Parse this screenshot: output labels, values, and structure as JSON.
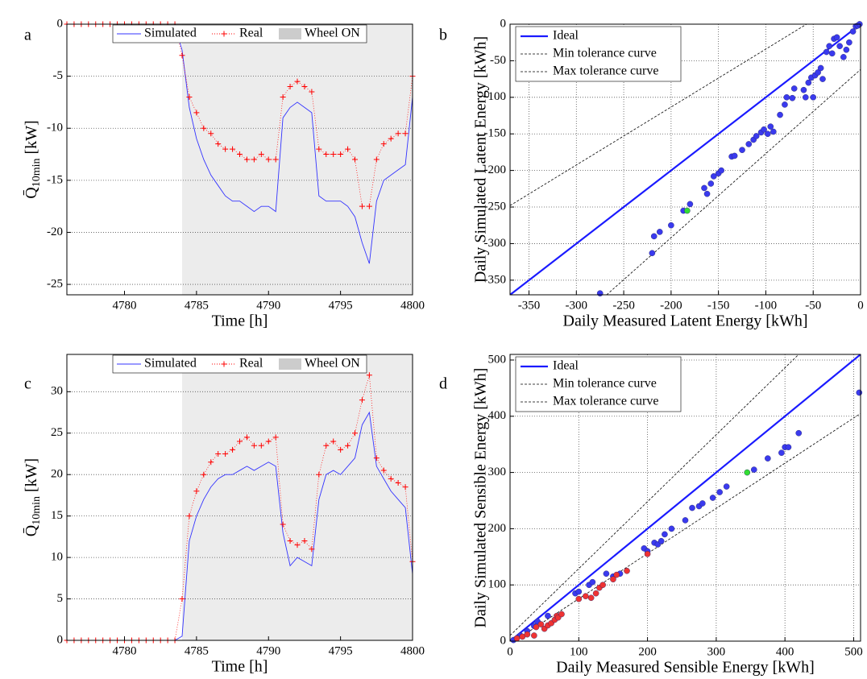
{
  "chart_data": [
    {
      "type": "line",
      "panel": "a",
      "xlabel": "Time [h]",
      "ylabel": {
        "main": "Q̄",
        "sub": "10min",
        "unit": "[kW]"
      },
      "xlim": [
        4776,
        4800
      ],
      "ylim": [
        -26,
        0
      ],
      "xticks": [
        4780,
        4785,
        4790,
        4795,
        4800
      ],
      "yticks": [
        -25,
        -20,
        -15,
        -10,
        -5,
        0
      ],
      "grid": "y",
      "legend": "upper center",
      "shaded": {
        "name": "Wheel ON",
        "color": "#ececec",
        "x": [
          4784,
          4800
        ]
      },
      "x": [
        4776,
        4776.5,
        4777,
        4777.5,
        4778,
        4778.5,
        4779,
        4779.5,
        4780,
        4780.5,
        4781,
        4781.5,
        4782,
        4782.5,
        4783,
        4783.5,
        4784,
        4784.5,
        4785,
        4785.5,
        4786,
        4786.5,
        4787,
        4787.5,
        4788,
        4788.5,
        4789,
        4789.5,
        4790,
        4790.5,
        4791,
        4791.5,
        4792,
        4792.5,
        4793,
        4793.5,
        4794,
        4794.5,
        4795,
        4795.5,
        4796,
        4796.5,
        4797,
        4797.5,
        4798,
        4798.5,
        4799,
        4799.5,
        4800
      ],
      "series": [
        {
          "name": "Simulated",
          "color": "#3333ff",
          "linestyle": "solid",
          "values": [
            0,
            0,
            0,
            0,
            0,
            0,
            0,
            0,
            0,
            0,
            0,
            0,
            0,
            0,
            0,
            0,
            -2.5,
            -8,
            -11,
            -13,
            -14.5,
            -15.5,
            -16.5,
            -17,
            -17,
            -17.5,
            -18,
            -17.5,
            -17.5,
            -18,
            -9,
            -8,
            -7.5,
            -8,
            -8.5,
            -16.5,
            -17,
            -17,
            -17,
            -17.5,
            -18.5,
            -21,
            -23,
            -17,
            -15,
            -14.5,
            -14,
            -13.5,
            -7
          ]
        },
        {
          "name": "Real",
          "color": "#ff0000",
          "linestyle": "dotted",
          "marker": "+",
          "values": [
            0,
            0,
            0,
            0,
            0,
            0,
            0,
            0,
            0,
            0,
            0,
            0,
            0,
            0,
            0,
            0,
            -3,
            -7,
            -8.5,
            -10,
            -10.5,
            -11.5,
            -12,
            -12,
            -12.5,
            -13,
            -13,
            -12.5,
            -13,
            -13,
            -7,
            -6,
            -5.5,
            -6,
            -6.5,
            -12,
            -12.5,
            -12.5,
            -12.5,
            -12,
            -13,
            -17.5,
            -17.5,
            -13,
            -11.5,
            -11,
            -10.5,
            -10.5,
            -5
          ]
        }
      ]
    },
    {
      "type": "scatter",
      "panel": "b",
      "xlabel": "Daily Measured Latent Energy [kWh]",
      "ylabel": "Daily Simulated Latent Energy [kWh]",
      "xlim": [
        -370,
        0
      ],
      "ylim": [
        -370,
        0
      ],
      "xticks": [
        -350,
        -300,
        -250,
        -200,
        -150,
        -100,
        -50,
        0
      ],
      "yticks": [
        -350,
        -300,
        -250,
        -200,
        -150,
        -100,
        -50,
        0
      ],
      "grid": "both",
      "legend": "upper left",
      "lines": [
        {
          "name": "Ideal",
          "color": "#1a1aff",
          "linestyle": "solid",
          "x": [
            -370,
            0
          ],
          "y": [
            -370,
            0
          ]
        },
        {
          "name": "Min tolerance curve",
          "color": "#000000",
          "linestyle": "dashed",
          "x": [
            -370,
            -57
          ],
          "y": [
            -248,
            0
          ]
        },
        {
          "name": "Max tolerance curve",
          "color": "#000000",
          "linestyle": "dashed",
          "x": [
            -268,
            0
          ],
          "y": [
            -370,
            -62
          ]
        }
      ],
      "points": [
        {
          "color": "#3a3aee",
          "x": [
            -275,
            -220,
            -218,
            -212,
            -200,
            -187,
            -180,
            -162,
            -165,
            -158,
            -155,
            -150,
            -147,
            -136,
            -133,
            -125,
            -118,
            -113,
            -110,
            -105,
            -102,
            -98,
            -95,
            -92,
            -85,
            -80,
            -78,
            -72,
            -70,
            -60,
            -58,
            -55,
            -52,
            -50,
            -48,
            -45,
            -42,
            -40,
            -36,
            -33,
            -30,
            -28,
            -25,
            -22,
            -18,
            -15,
            -12,
            -8,
            -5,
            -3,
            -1
          ],
          "y": [
            -368,
            -313,
            -290,
            -284,
            -275,
            -255,
            -246,
            -232,
            -224,
            -218,
            -208,
            -204,
            -200,
            -181,
            -180,
            -172,
            -164,
            -158,
            -153,
            -148,
            -144,
            -150,
            -140,
            -147,
            -124,
            -110,
            -100,
            -101,
            -88,
            -90,
            -100,
            -80,
            -73,
            -100,
            -70,
            -66,
            -60,
            -75,
            -38,
            -30,
            -40,
            -20,
            -18,
            -30,
            -45,
            -35,
            -25,
            -10,
            -3,
            -2,
            0
          ]
        },
        {
          "color": "#33dd33",
          "x": [
            -183
          ],
          "y": [
            -255
          ]
        }
      ]
    },
    {
      "type": "line",
      "panel": "c",
      "xlabel": "Time [h]",
      "ylabel": {
        "main": "Q̄",
        "sub": "10min",
        "unit": "[kW]"
      },
      "xlim": [
        4776,
        4800
      ],
      "ylim": [
        0,
        34.5
      ],
      "xticks": [
        4780,
        4785,
        4790,
        4795,
        4800
      ],
      "yticks": [
        0,
        5,
        10,
        15,
        20,
        25,
        30
      ],
      "grid": "y",
      "legend": "upper center",
      "shaded": {
        "name": "Wheel ON",
        "color": "#ececec",
        "x": [
          4784,
          4800
        ]
      },
      "x": [
        4776,
        4776.5,
        4777,
        4777.5,
        4778,
        4778.5,
        4779,
        4779.5,
        4780,
        4780.5,
        4781,
        4781.5,
        4782,
        4782.5,
        4783,
        4783.5,
        4784,
        4784.5,
        4785,
        4785.5,
        4786,
        4786.5,
        4787,
        4787.5,
        4788,
        4788.5,
        4789,
        4789.5,
        4790,
        4790.5,
        4791,
        4791.5,
        4792,
        4792.5,
        4793,
        4793.5,
        4794,
        4794.5,
        4795,
        4795.5,
        4796,
        4796.5,
        4797,
        4797.5,
        4798,
        4798.5,
        4799,
        4799.5,
        4800
      ],
      "series": [
        {
          "name": "Simulated",
          "color": "#3333ff",
          "linestyle": "solid",
          "values": [
            0,
            0,
            0,
            0,
            0,
            0,
            0,
            0,
            0,
            0,
            0,
            0,
            0,
            0,
            0,
            0,
            0.5,
            12,
            15,
            17,
            18.5,
            19.5,
            20,
            20,
            20.5,
            21,
            20.5,
            21,
            21.5,
            21,
            13,
            9,
            10,
            9.5,
            9,
            17,
            20,
            20.5,
            20,
            21,
            22,
            26,
            27.5,
            21,
            19.5,
            18,
            17,
            16,
            8
          ]
        },
        {
          "name": "Real",
          "color": "#ff0000",
          "linestyle": "dotted",
          "marker": "+",
          "values": [
            0,
            0,
            0,
            0,
            0,
            0,
            0,
            0,
            0,
            0,
            0,
            0,
            0,
            0,
            0,
            0,
            5,
            15,
            18,
            20,
            21.5,
            22.5,
            22.5,
            23,
            24,
            24.5,
            23.5,
            23.5,
            24,
            24.5,
            14,
            12,
            11.5,
            12,
            11,
            20,
            23.5,
            24,
            23,
            23.5,
            25,
            29,
            32,
            22,
            20.5,
            19.5,
            19,
            18.5,
            9.5
          ]
        }
      ]
    },
    {
      "type": "scatter",
      "panel": "d",
      "xlabel": "Daily Measured Sensible Energy [kWh]",
      "ylabel": "Daily Simulated Sensible Energy [kWh]",
      "xlim": [
        0,
        510
      ],
      "ylim": [
        0,
        510
      ],
      "xticks": [
        0,
        100,
        200,
        300,
        400,
        500
      ],
      "yticks": [
        0,
        100,
        200,
        300,
        400,
        500
      ],
      "grid": "both",
      "legend": "upper left",
      "lines": [
        {
          "name": "Ideal",
          "color": "#1a1aff",
          "linestyle": "solid",
          "x": [
            0,
            510
          ],
          "y": [
            0,
            510
          ]
        },
        {
          "name": "Min tolerance curve",
          "color": "#000000",
          "linestyle": "dashed",
          "x": [
            0,
            420
          ],
          "y": [
            10,
            510
          ]
        },
        {
          "name": "Max tolerance curve",
          "color": "#000000",
          "linestyle": "dashed",
          "x": [
            0,
            510
          ],
          "y": [
            -5,
            405
          ]
        }
      ],
      "points": [
        {
          "color": "#3a3aee",
          "x": [
            5,
            15,
            25,
            35,
            40,
            55,
            95,
            100,
            115,
            120,
            140,
            150,
            160,
            195,
            200,
            210,
            215,
            220,
            225,
            235,
            255,
            265,
            275,
            280,
            295,
            305,
            315,
            355,
            375,
            395,
            400,
            405,
            420,
            508
          ],
          "y": [
            2,
            10,
            18,
            27,
            35,
            45,
            85,
            88,
            100,
            105,
            120,
            115,
            120,
            165,
            160,
            175,
            172,
            178,
            190,
            200,
            215,
            237,
            240,
            245,
            255,
            265,
            275,
            305,
            325,
            335,
            345,
            345,
            370,
            442
          ]
        },
        {
          "color": "#ee3333",
          "x": [
            10,
            18,
            25,
            35,
            38,
            45,
            50,
            55,
            60,
            65,
            68,
            70,
            75,
            100,
            110,
            118,
            125,
            130,
            135,
            150,
            155,
            170,
            200
          ],
          "y": [
            5,
            8,
            12,
            10,
            25,
            30,
            22,
            28,
            32,
            38,
            45,
            42,
            48,
            75,
            80,
            77,
            85,
            95,
            100,
            110,
            118,
            125,
            155
          ]
        },
        {
          "color": "#33dd33",
          "x": [
            345
          ],
          "y": [
            300
          ]
        }
      ]
    }
  ]
}
